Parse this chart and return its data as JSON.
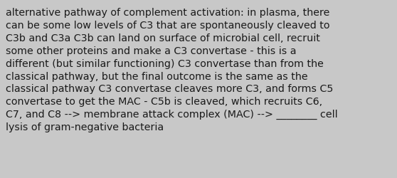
{
  "text": "alternative pathway of complement activation: in plasma, there\ncan be some low levels of C3 that are spontaneously cleaved to\nC3b and C3a C3b can land on surface of microbial cell, recruit\nsome other proteins and make a C3 convertase - this is a\ndifferent (but similar functioning) C3 convertase than from the\nclassical pathway, but the final outcome is the same as the\nclassical pathway C3 convertase cleaves more C3, and forms C5\nconvertase to get the MAC - C5b is cleaved, which recruits C6,\nC7, and C8 --> membrane attack complex (MAC) --> ________ cell\nlysis of gram-negative bacteria",
  "background_color": "#c8c8c8",
  "text_color": "#1a1a1a",
  "font_size": 10.3,
  "fig_width": 5.58,
  "fig_height": 2.51,
  "dpi": 100
}
